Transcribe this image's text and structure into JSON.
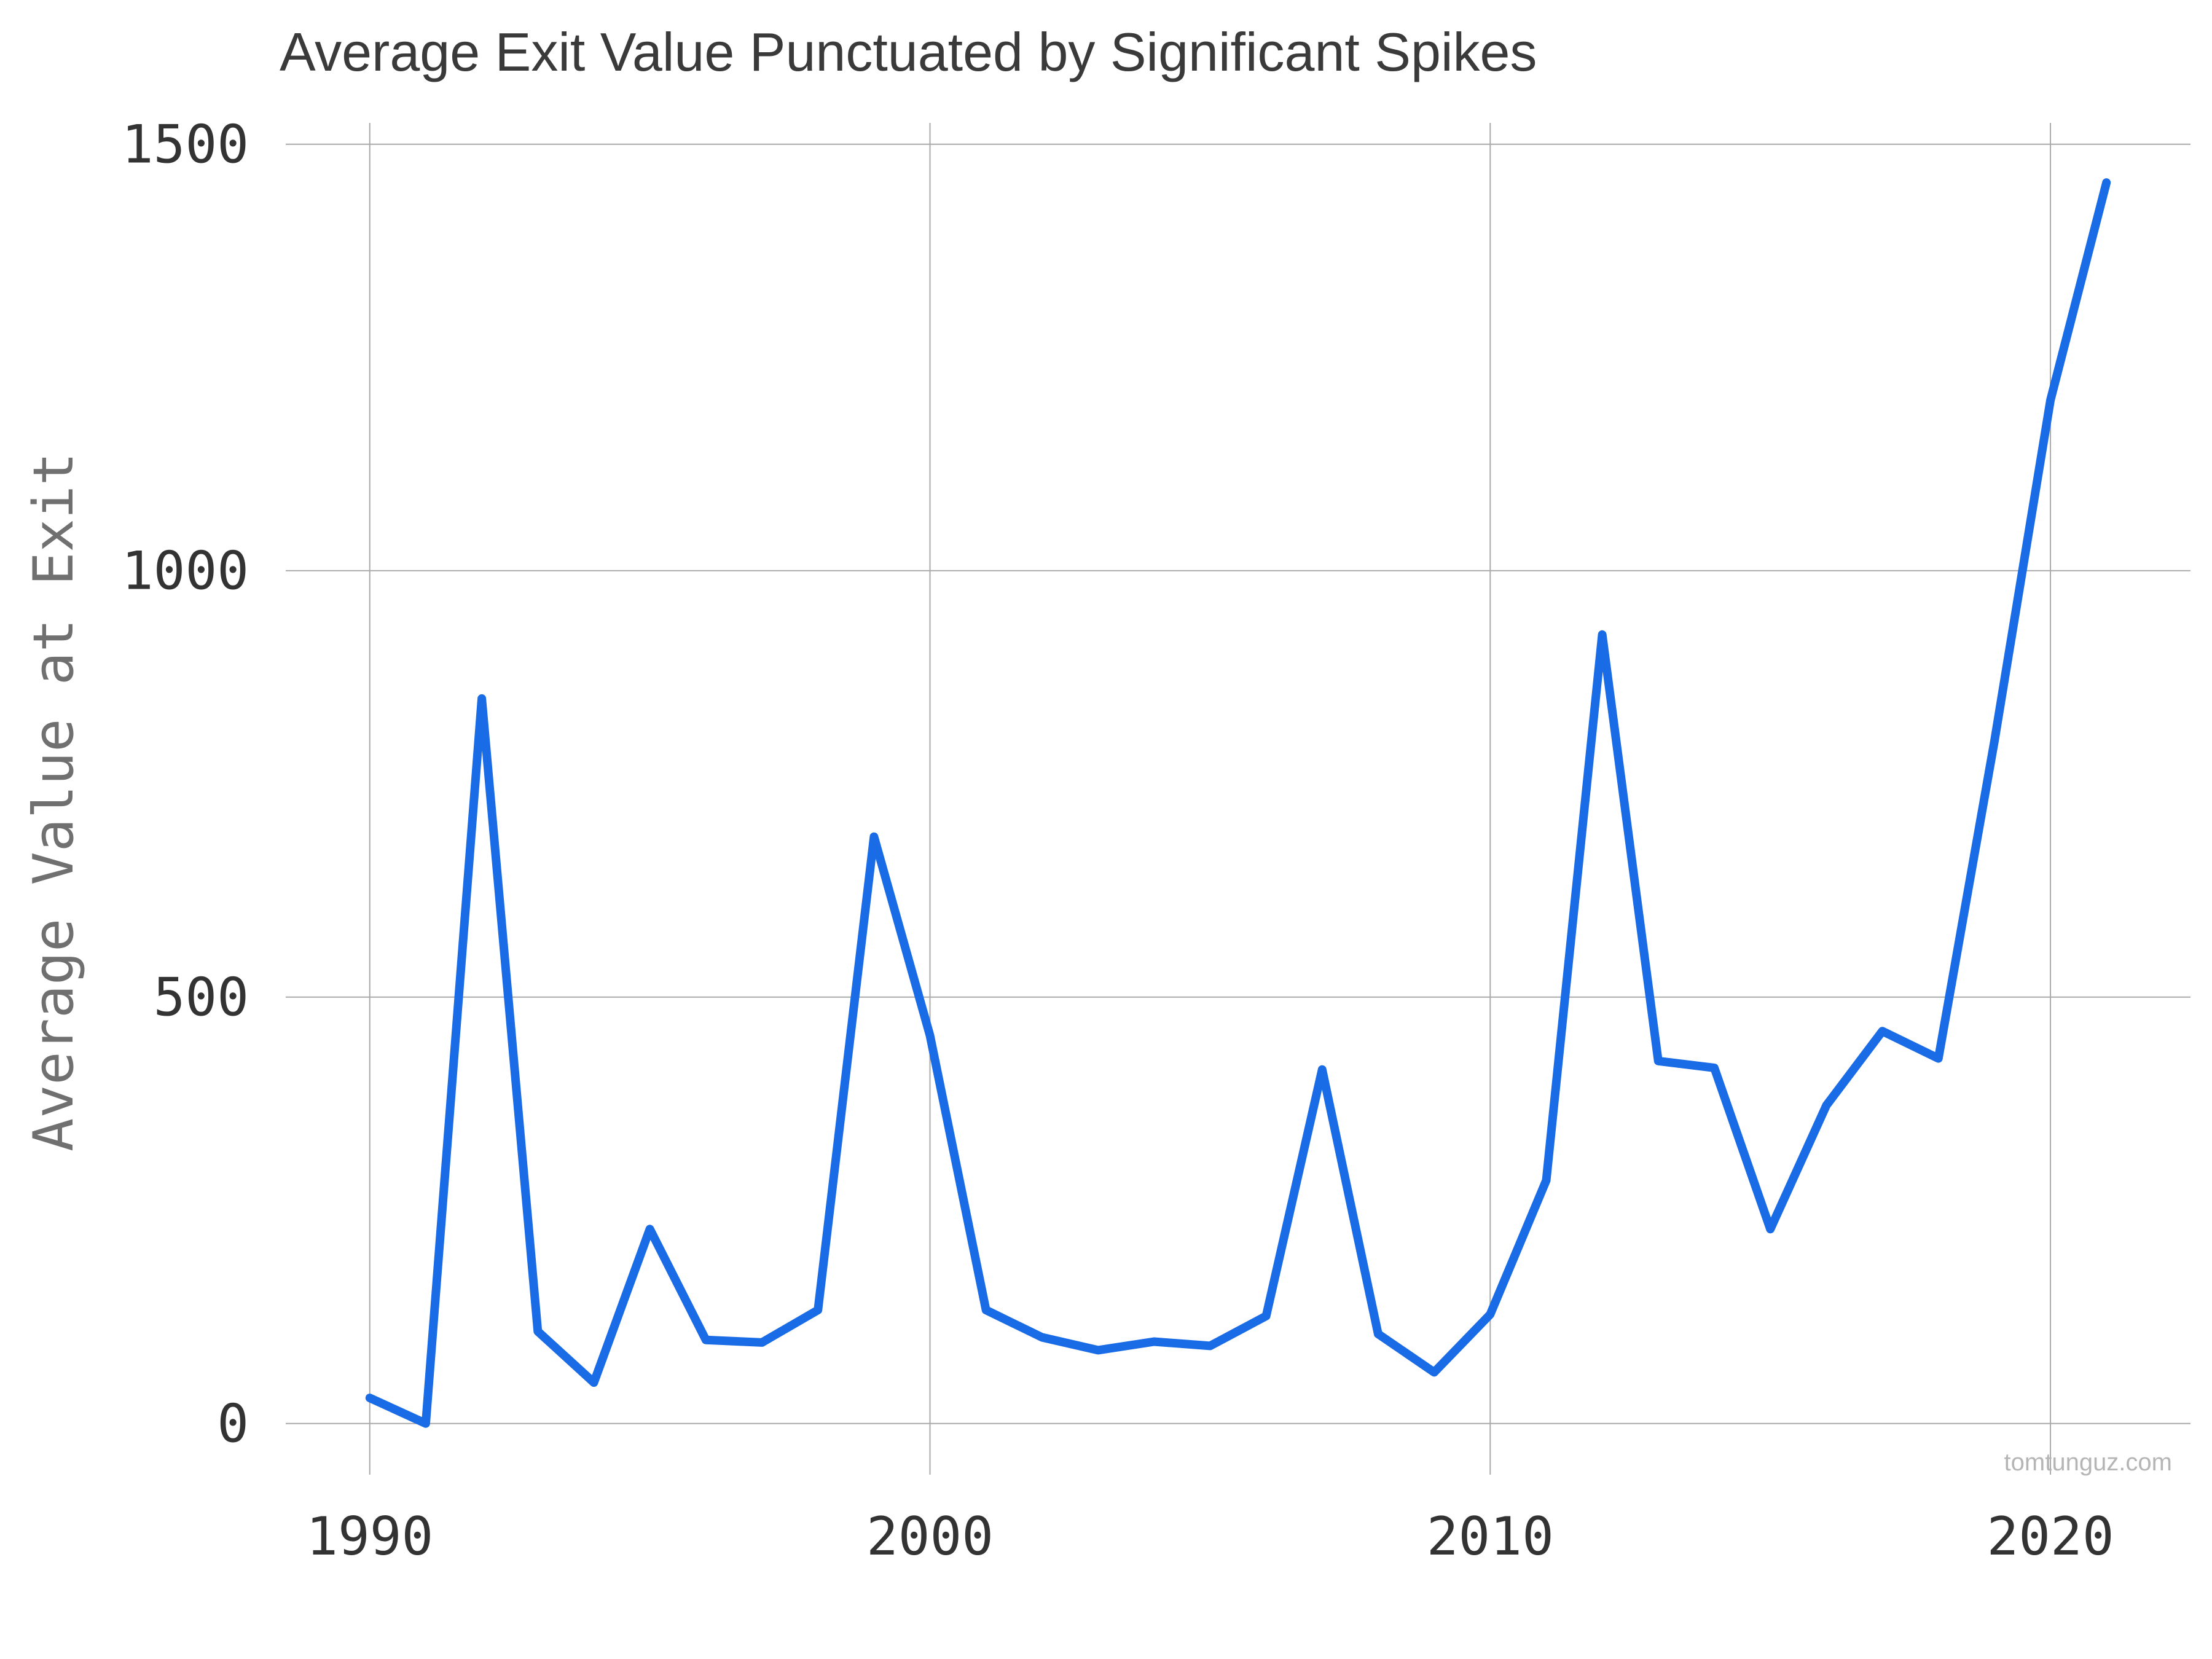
{
  "chart_data": {
    "type": "line",
    "title": "Average Exit Value Punctuated by Significant Spikes",
    "xlabel": "",
    "ylabel": "Average Value at Exit",
    "x": [
      1990,
      1991,
      1992,
      1993,
      1994,
      1995,
      1996,
      1997,
      1998,
      1999,
      2000,
      2001,
      2002,
      2003,
      2004,
      2005,
      2006,
      2007,
      2008,
      2009,
      2010,
      2011,
      2012,
      2013,
      2014,
      2015,
      2016,
      2017,
      2018,
      2019,
      2020,
      2021
    ],
    "series": [
      {
        "values": [
          30,
          0,
          850,
          108,
          48,
          228,
          98,
          95,
          133,
          688,
          455,
          133,
          101,
          86,
          96,
          91,
          126,
          415,
          105,
          60,
          128,
          285,
          925,
          425,
          417,
          228,
          373,
          460,
          428,
          800,
          1200,
          1455
        ],
        "color": "#1a6be6"
      }
    ],
    "xlim": [
      1988.5,
      2022.5
    ],
    "ylim": [
      -60,
      1525
    ],
    "xticks": [
      1990,
      2000,
      2010,
      2020
    ],
    "yticks": [
      0,
      500,
      1000,
      1500
    ],
    "grid": true,
    "legend": "none"
  },
  "credit": "tomtunguz.com"
}
